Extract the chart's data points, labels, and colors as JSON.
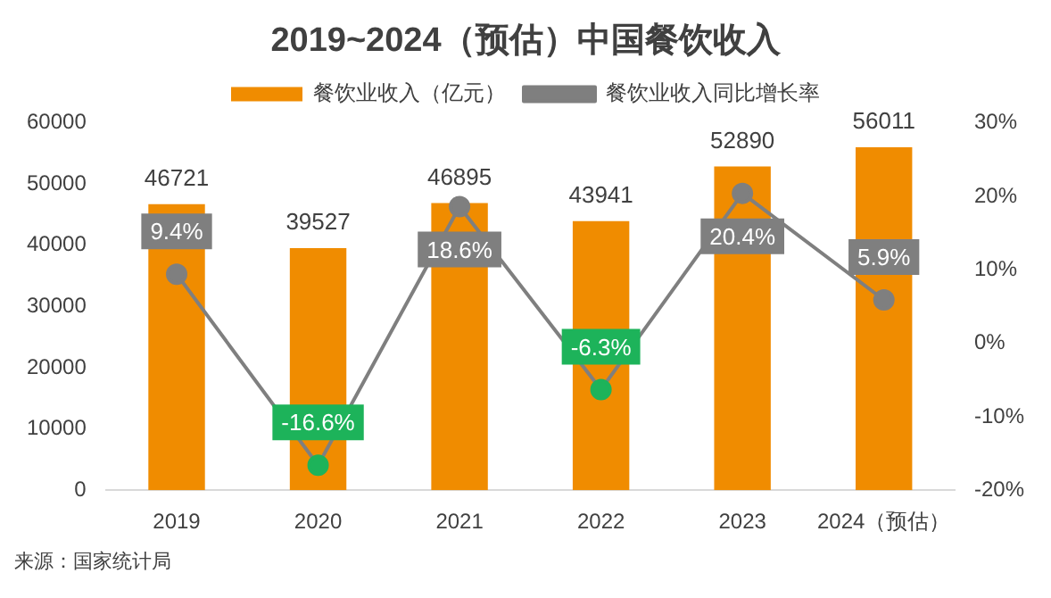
{
  "chart_data": {
    "type": "bar",
    "title": "2019~2024（预估）中国餐饮收入",
    "categories": [
      "2019",
      "2020",
      "2021",
      "2022",
      "2023",
      "2024（预估）"
    ],
    "series": [
      {
        "name": "餐饮业收入（亿元）",
        "color": "#f08c00",
        "values": [
          46721,
          39527,
          46895,
          43941,
          52890,
          56011
        ],
        "value_labels": [
          "46721",
          "39527",
          "46895",
          "43941",
          "52890",
          "56011"
        ]
      },
      {
        "name": "餐饮业收入同比增长率",
        "type": "line",
        "axis": "y2",
        "color": "#7f7f7f",
        "colors": [
          "#7f7f7f",
          "#1db35a",
          "#7f7f7f",
          "#1db35a",
          "#7f7f7f",
          "#7f7f7f"
        ],
        "values": [
          9.4,
          -16.6,
          18.6,
          -6.3,
          20.4,
          5.9
        ],
        "value_labels": [
          "9.4%",
          "-16.6%",
          "18.6%",
          "-6.3%",
          "20.4%",
          "5.9%"
        ]
      }
    ],
    "ylim": [
      0,
      60000
    ],
    "yticks": [
      0,
      10000,
      20000,
      30000,
      40000,
      50000,
      60000
    ],
    "y2lim": [
      -20,
      30
    ],
    "y2ticks": [
      {
        "value": -20,
        "label": "-20%"
      },
      {
        "value": -10,
        "label": "-10%"
      },
      {
        "value": 0,
        "label": "0%"
      },
      {
        "value": 10,
        "label": "10%"
      },
      {
        "value": 20,
        "label": "20%"
      },
      {
        "value": 30,
        "label": "30%"
      }
    ],
    "legend": "top",
    "marker": "circle",
    "line_style": "solid",
    "annotations": [
      "来源：国家统计局"
    ]
  }
}
